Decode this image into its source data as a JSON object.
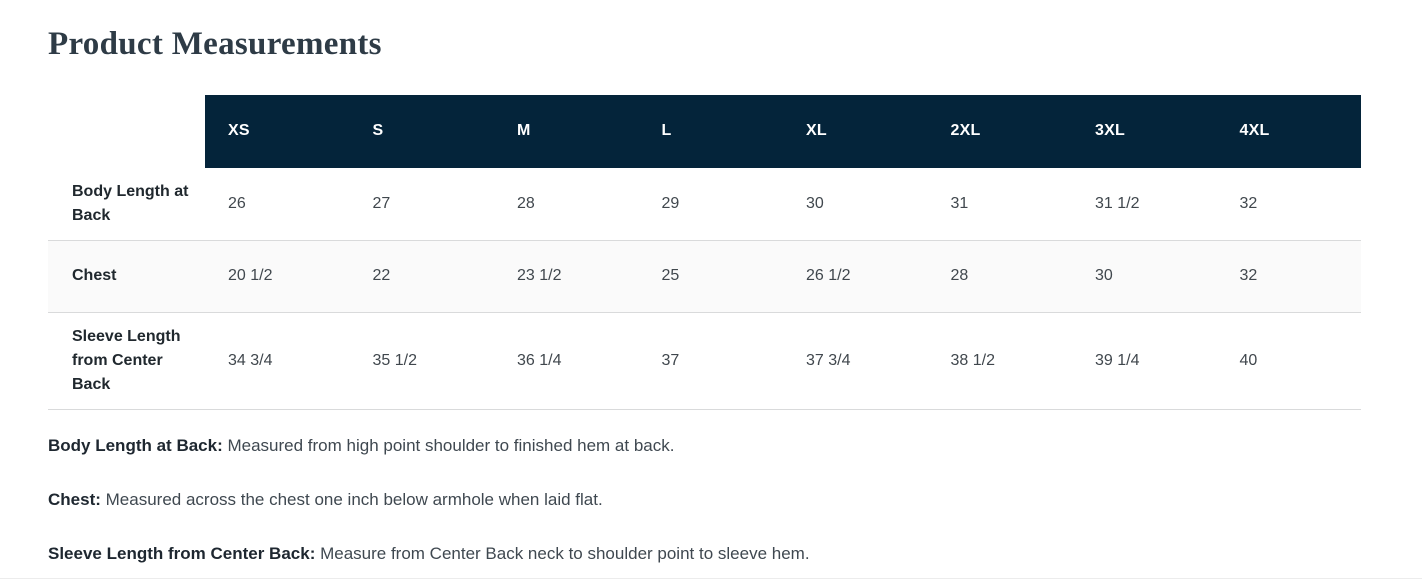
{
  "page": {
    "title": "Product Measurements"
  },
  "table": {
    "sizes": [
      "XS",
      "S",
      "M",
      "L",
      "XL",
      "2XL",
      "3XL",
      "4XL"
    ],
    "rows": [
      {
        "label": "Body Length at Back",
        "values": [
          "26",
          "27",
          "28",
          "29",
          "30",
          "31",
          "31 1/2",
          "32"
        ]
      },
      {
        "label": "Chest",
        "values": [
          "20 1/2",
          "22",
          "23 1/2",
          "25",
          "26 1/2",
          "28",
          "30",
          "32"
        ]
      },
      {
        "label": "Sleeve Length from Center Back",
        "values": [
          "34 3/4",
          "35 1/2",
          "36 1/4",
          "37",
          "37 3/4",
          "38 1/2",
          "39 1/4",
          "40"
        ]
      }
    ]
  },
  "footnotes": [
    {
      "term": "Body Length at Back:",
      "definition": "Measured from high point shoulder to finished hem at back."
    },
    {
      "term": "Chest:",
      "definition": "Measured across the chest one inch below armhole when laid flat."
    },
    {
      "term": "Sleeve Length from Center Back:",
      "definition": "Measure from Center Back neck to shoulder point to sleeve hem."
    }
  ],
  "colors": {
    "header_bg": "#04243a",
    "header_text": "#ffffff",
    "stripe_bg": "#fafafa",
    "row_border": "#d9dadb",
    "title_text": "#2e3b46"
  }
}
